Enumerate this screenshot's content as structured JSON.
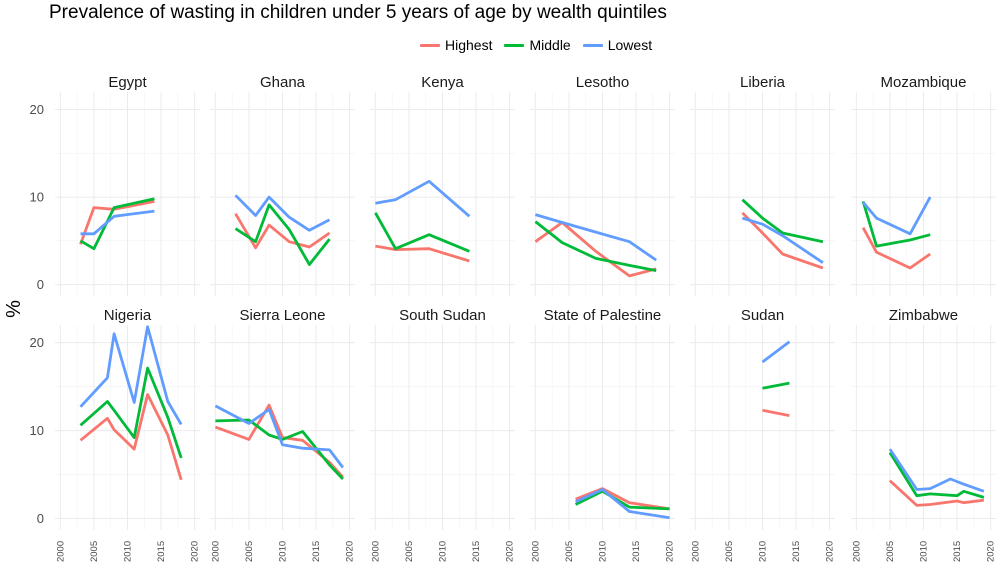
{
  "chart_data": {
    "type": "line",
    "title": "Prevalence of wasting in children under 5 years of age by wealth quintiles",
    "ylabel": "%",
    "xlabel": "",
    "xlim": [
      2000,
      2020
    ],
    "ylim": [
      0,
      22
    ],
    "x_ticks": [
      2000,
      2005,
      2010,
      2015,
      2020
    ],
    "y_ticks": [
      0,
      10,
      20
    ],
    "legend_position": "top",
    "grid": true,
    "series_names": [
      "Highest",
      "Middle",
      "Lowest"
    ],
    "series_colors": {
      "Highest": "#F8766D",
      "Middle": "#00BA38",
      "Lowest": "#619CFF"
    },
    "facets": [
      {
        "name": "Egypt",
        "series": [
          {
            "name": "Highest",
            "segments": [
              [
                [
                  2003,
                  4.6
                ],
                [
                  2005,
                  8.8
                ],
                [
                  2008,
                  8.6
                ],
                [
                  2014,
                  9.5
                ]
              ]
            ]
          },
          {
            "name": "Middle",
            "segments": [
              [
                [
                  2003,
                  5.0
                ],
                [
                  2005,
                  4.1
                ],
                [
                  2008,
                  8.8
                ],
                [
                  2014,
                  9.8
                ]
              ]
            ]
          },
          {
            "name": "Lowest",
            "segments": [
              [
                [
                  2003,
                  5.8
                ],
                [
                  2005,
                  5.8
                ],
                [
                  2008,
                  7.8
                ],
                [
                  2014,
                  8.4
                ]
              ]
            ]
          }
        ]
      },
      {
        "name": "Ghana",
        "series": [
          {
            "name": "Highest",
            "segments": [
              [
                [
                  2003,
                  8.1
                ],
                [
                  2006,
                  4.2
                ],
                [
                  2008,
                  6.8
                ],
                [
                  2011,
                  4.9
                ],
                [
                  2014,
                  4.3
                ],
                [
                  2017,
                  5.9
                ]
              ]
            ]
          },
          {
            "name": "Middle",
            "segments": [
              [
                [
                  2003,
                  6.4
                ],
                [
                  2006,
                  4.9
                ],
                [
                  2008,
                  9.1
                ],
                [
                  2011,
                  6.3
                ],
                [
                  2014,
                  2.3
                ],
                [
                  2017,
                  5.2
                ]
              ]
            ]
          },
          {
            "name": "Lowest",
            "segments": [
              [
                [
                  2003,
                  10.2
                ],
                [
                  2006,
                  7.9
                ],
                [
                  2008,
                  10.0
                ],
                [
                  2011,
                  7.7
                ],
                [
                  2014,
                  6.2
                ],
                [
                  2017,
                  7.4
                ]
              ]
            ]
          }
        ]
      },
      {
        "name": "Kenya",
        "series": [
          {
            "name": "Highest",
            "segments": [
              [
                [
                  2000,
                  4.4
                ],
                [
                  2003,
                  4.0
                ],
                [
                  2008,
                  4.1
                ],
                [
                  2014,
                  2.7
                ]
              ]
            ]
          },
          {
            "name": "Middle",
            "segments": [
              [
                [
                  2000,
                  8.2
                ],
                [
                  2003,
                  4.1
                ],
                [
                  2008,
                  5.7
                ],
                [
                  2014,
                  3.8
                ]
              ]
            ]
          },
          {
            "name": "Lowest",
            "segments": [
              [
                [
                  2000,
                  9.3
                ],
                [
                  2003,
                  9.7
                ],
                [
                  2008,
                  11.8
                ],
                [
                  2014,
                  7.8
                ]
              ]
            ]
          }
        ]
      },
      {
        "name": "Lesotho",
        "series": [
          {
            "name": "Highest",
            "segments": [
              [
                [
                  2000,
                  4.9
                ],
                [
                  2004,
                  7.1
                ],
                [
                  2009,
                  3.8
                ],
                [
                  2014,
                  1.0
                ],
                [
                  2018,
                  1.8
                ]
              ]
            ]
          },
          {
            "name": "Middle",
            "segments": [
              [
                [
                  2000,
                  7.2
                ],
                [
                  2004,
                  4.8
                ],
                [
                  2009,
                  3.0
                ],
                [
                  2014,
                  2.2
                ],
                [
                  2018,
                  1.6
                ]
              ]
            ]
          },
          {
            "name": "Lowest",
            "segments": [
              [
                [
                  2000,
                  8.0
                ],
                [
                  2004,
                  7.1
                ],
                [
                  2009,
                  6.0
                ],
                [
                  2014,
                  4.9
                ],
                [
                  2018,
                  2.8
                ]
              ]
            ]
          }
        ]
      },
      {
        "name": "Liberia",
        "series": [
          {
            "name": "Highest",
            "segments": [
              [
                [
                  2007,
                  8.2
                ],
                [
                  2010,
                  5.9
                ],
                [
                  2013,
                  3.5
                ],
                [
                  2019,
                  1.9
                ]
              ]
            ]
          },
          {
            "name": "Middle",
            "segments": [
              [
                [
                  2007,
                  9.7
                ],
                [
                  2010,
                  7.6
                ],
                [
                  2013,
                  5.9
                ],
                [
                  2019,
                  4.9
                ]
              ]
            ]
          },
          {
            "name": "Lowest",
            "segments": [
              [
                [
                  2007,
                  7.6
                ],
                [
                  2010,
                  6.9
                ],
                [
                  2013,
                  5.6
                ],
                [
                  2019,
                  2.5
                ]
              ]
            ]
          }
        ]
      },
      {
        "name": "Mozambique",
        "series": [
          {
            "name": "Highest",
            "segments": [
              [
                [
                  2001,
                  6.5
                ],
                [
                  2003,
                  3.7
                ],
                [
                  2008,
                  1.9
                ],
                [
                  2011,
                  3.5
                ]
              ]
            ]
          },
          {
            "name": "Middle",
            "segments": [
              [
                [
                  2001,
                  9.5
                ],
                [
                  2003,
                  4.4
                ],
                [
                  2008,
                  5.1
                ],
                [
                  2011,
                  5.7
                ]
              ]
            ]
          },
          {
            "name": "Lowest",
            "segments": [
              [
                [
                  2001,
                  9.4
                ],
                [
                  2003,
                  7.6
                ],
                [
                  2008,
                  5.8
                ],
                [
                  2011,
                  10.0
                ]
              ]
            ]
          }
        ]
      },
      {
        "name": "Nigeria",
        "series": [
          {
            "name": "Highest",
            "segments": [
              [
                [
                  2003,
                  8.9
                ],
                [
                  2007,
                  11.4
                ],
                [
                  2008,
                  10.1
                ],
                [
                  2011,
                  7.9
                ],
                [
                  2013,
                  14.1
                ],
                [
                  2016,
                  9.5
                ],
                [
                  2018,
                  4.4
                ]
              ]
            ]
          },
          {
            "name": "Middle",
            "segments": [
              [
                [
                  2003,
                  10.6
                ],
                [
                  2007,
                  13.3
                ],
                [
                  2008,
                  12.3
                ],
                [
                  2011,
                  9.2
                ],
                [
                  2013,
                  17.1
                ],
                [
                  2016,
                  11.5
                ],
                [
                  2018,
                  6.9
                ]
              ]
            ]
          },
          {
            "name": "Lowest",
            "segments": [
              [
                [
                  2003,
                  12.7
                ],
                [
                  2007,
                  16.0
                ],
                [
                  2008,
                  21.0
                ],
                [
                  2011,
                  13.2
                ],
                [
                  2013,
                  21.8
                ],
                [
                  2016,
                  13.3
                ],
                [
                  2018,
                  10.7
                ]
              ]
            ]
          }
        ]
      },
      {
        "name": "Sierra Leone",
        "series": [
          {
            "name": "Highest",
            "segments": [
              [
                [
                  2000,
                  10.4
                ],
                [
                  2005,
                  9.0
                ],
                [
                  2008,
                  12.9
                ],
                [
                  2010,
                  9.2
                ],
                [
                  2013,
                  8.9
                ],
                [
                  2017,
                  6.4
                ],
                [
                  2019,
                  4.7
                ]
              ]
            ]
          },
          {
            "name": "Middle",
            "segments": [
              [
                [
                  2000,
                  11.1
                ],
                [
                  2005,
                  11.2
                ],
                [
                  2008,
                  9.5
                ],
                [
                  2010,
                  9.0
                ],
                [
                  2013,
                  9.9
                ],
                [
                  2017,
                  6.1
                ],
                [
                  2019,
                  4.5
                ]
              ]
            ]
          },
          {
            "name": "Lowest",
            "segments": [
              [
                [
                  2000,
                  12.8
                ],
                [
                  2005,
                  10.8
                ],
                [
                  2008,
                  12.4
                ],
                [
                  2010,
                  8.4
                ],
                [
                  2013,
                  8.0
                ],
                [
                  2017,
                  7.8
                ],
                [
                  2019,
                  5.8
                ]
              ]
            ]
          }
        ]
      },
      {
        "name": "South Sudan",
        "series": [
          {
            "name": "Highest",
            "segments": []
          },
          {
            "name": "Middle",
            "segments": []
          },
          {
            "name": "Lowest",
            "segments": []
          }
        ]
      },
      {
        "name": "State of Palestine",
        "series": [
          {
            "name": "Highest",
            "segments": [
              [
                [
                  2006,
                  2.2
                ],
                [
                  2010,
                  3.4
                ],
                [
                  2014,
                  1.8
                ],
                [
                  2020,
                  1.1
                ]
              ]
            ]
          },
          {
            "name": "Middle",
            "segments": [
              [
                [
                  2006,
                  1.6
                ],
                [
                  2010,
                  3.1
                ],
                [
                  2014,
                  1.3
                ],
                [
                  2020,
                  1.1
                ]
              ]
            ]
          },
          {
            "name": "Lowest",
            "segments": [
              [
                [
                  2006,
                  1.9
                ],
                [
                  2010,
                  3.3
                ],
                [
                  2014,
                  0.8
                ],
                [
                  2020,
                  0.1
                ]
              ]
            ]
          }
        ]
      },
      {
        "name": "Sudan",
        "series": [
          {
            "name": "Highest",
            "segments": [
              [
                [
                  2010,
                  12.3
                ],
                [
                  2014,
                  11.7
                ]
              ]
            ]
          },
          {
            "name": "Middle",
            "segments": [
              [
                [
                  2010,
                  14.8
                ],
                [
                  2014,
                  15.4
                ]
              ]
            ]
          },
          {
            "name": "Lowest",
            "segments": [
              [
                [
                  2010,
                  17.8
                ],
                [
                  2014,
                  20.1
                ]
              ]
            ]
          }
        ]
      },
      {
        "name": "Zimbabwe",
        "series": [
          {
            "name": "Highest",
            "segments": [
              [
                [
                  2005,
                  4.3
                ],
                [
                  2009,
                  1.5
                ],
                [
                  2011,
                  1.6
                ],
                [
                  2015,
                  2.0
                ],
                [
                  2016,
                  1.8
                ],
                [
                  2019,
                  2.1
                ]
              ]
            ]
          },
          {
            "name": "Middle",
            "segments": [
              [
                [
                  2005,
                  7.5
                ],
                [
                  2009,
                  2.6
                ],
                [
                  2011,
                  2.8
                ],
                [
                  2015,
                  2.6
                ],
                [
                  2016,
                  3.1
                ],
                [
                  2019,
                  2.4
                ]
              ]
            ]
          },
          {
            "name": "Lowest",
            "segments": [
              [
                [
                  2005,
                  7.9
                ],
                [
                  2009,
                  3.3
                ],
                [
                  2011,
                  3.4
                ],
                [
                  2014,
                  4.5
                ],
                [
                  2016,
                  3.9
                ],
                [
                  2019,
                  3.1
                ]
              ]
            ]
          }
        ]
      }
    ]
  }
}
